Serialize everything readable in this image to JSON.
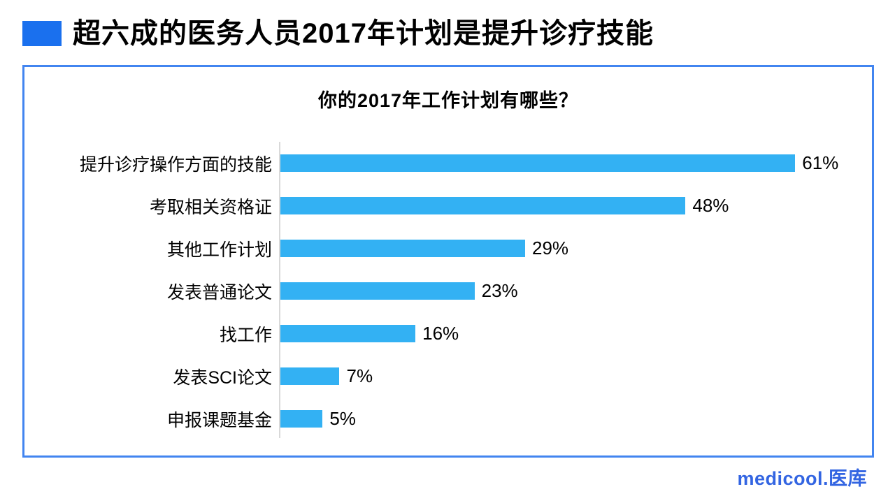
{
  "header": {
    "title": "超六成的医务人员2017年计划是提升诊疗技能",
    "bullet_color": "#1A70EE"
  },
  "chart_data": {
    "type": "bar",
    "orientation": "horizontal",
    "title": "你的2017年工作计划有哪些？",
    "categories": [
      "提升诊疗操作方面的技能",
      "考取相关资格证",
      "其他工作计划",
      "发表普通论文",
      "找工作",
      "发表SCI论文",
      "申报课题基金"
    ],
    "values": [
      61,
      48,
      29,
      23,
      16,
      7,
      5
    ],
    "value_labels": [
      "61%",
      "48%",
      "29%",
      "23%",
      "16%",
      "7%",
      "5%"
    ],
    "unit": "%",
    "xlim": [
      0,
      70
    ],
    "grid": false,
    "legend": "none",
    "bar_color": "#33B1F3",
    "axis_line_color": "#D9D9D9",
    "box_border_color": "#4285F0"
  },
  "logo": {
    "text": "medicool.医库",
    "color": "#3365E2"
  }
}
